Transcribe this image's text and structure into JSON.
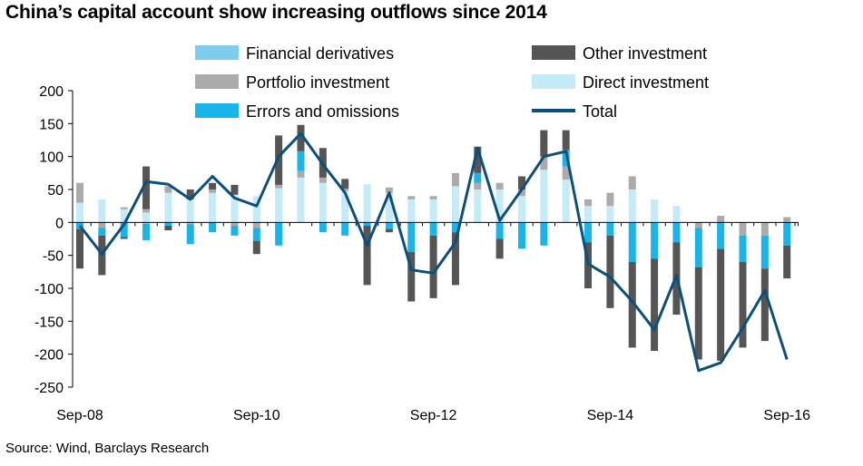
{
  "chart_data": {
    "type": "bar",
    "stacked": true,
    "title": "China’s capital account show increasing outflows since 2014",
    "source": "Source: Wind, Barclays Research",
    "ylim": [
      -250,
      200
    ],
    "yticks": [
      200,
      150,
      100,
      50,
      0,
      -50,
      -100,
      -150,
      -200,
      -250
    ],
    "x_tick_labels": [
      "Sep-08",
      "Sep-10",
      "Sep-12",
      "Sep-14",
      "Sep-16"
    ],
    "x_tick_index": [
      0,
      8,
      16,
      24,
      32
    ],
    "grid": false,
    "colors": {
      "financial_derivatives": "#7ecdf0",
      "other_investment": "#555555",
      "portfolio_investment": "#ababab",
      "direct_investment": "#c5eaf8",
      "errors_and_omissions": "#18b5ea",
      "total": "#0b4f7c"
    },
    "legend": [
      {
        "key": "financial_derivatives",
        "name": "Financial derivatives",
        "kind": "bar"
      },
      {
        "key": "other_investment",
        "name": "Other investment",
        "kind": "bar"
      },
      {
        "key": "portfolio_investment",
        "name": "Portfolio investment",
        "kind": "bar"
      },
      {
        "key": "direct_investment",
        "name": "Direct investment",
        "kind": "bar"
      },
      {
        "key": "errors_and_omissions",
        "name": "Errors and omissions",
        "kind": "bar"
      },
      {
        "key": "total",
        "name": "Total",
        "kind": "line"
      }
    ],
    "stack_order": [
      "direct_investment",
      "portfolio_investment",
      "financial_derivatives",
      "errors_and_omissions",
      "other_investment"
    ],
    "series": [
      {
        "key": "direct_investment",
        "name": "Direct investment",
        "values": [
          30,
          35,
          20,
          15,
          45,
          35,
          45,
          42,
          40,
          52,
          68,
          60,
          48,
          58,
          45,
          35,
          35,
          55,
          50,
          50,
          40,
          80,
          65,
          25,
          25,
          50,
          35,
          25,
          0,
          0,
          0,
          0,
          0
        ]
      },
      {
        "key": "portfolio_investment",
        "name": "Portfolio investment",
        "values": [
          30,
          -8,
          3,
          5,
          10,
          -3,
          5,
          -5,
          -8,
          5,
          10,
          8,
          3,
          0,
          8,
          5,
          5,
          20,
          10,
          10,
          10,
          20,
          20,
          10,
          20,
          20,
          0,
          0,
          -8,
          10,
          -20,
          -20,
          8
        ]
      },
      {
        "key": "financial_derivatives",
        "name": "Financial derivatives",
        "values": [
          0,
          0,
          0,
          -2,
          0,
          0,
          0,
          0,
          0,
          0,
          0,
          0,
          0,
          0,
          0,
          0,
          0,
          0,
          0,
          0,
          0,
          0,
          0,
          0,
          0,
          0,
          0,
          0,
          0,
          0,
          0,
          0,
          0
        ]
      },
      {
        "key": "errors_and_omissions",
        "name": "Errors and omissions",
        "values": [
          -10,
          -12,
          -22,
          -25,
          -5,
          -30,
          -15,
          -15,
          -20,
          -35,
          30,
          -15,
          -20,
          -5,
          -10,
          -45,
          -20,
          -15,
          15,
          -25,
          -40,
          -35,
          25,
          -30,
          -20,
          -60,
          -55,
          -30,
          -60,
          -40,
          -40,
          -50,
          -35
        ]
      },
      {
        "key": "other_investment",
        "name": "Other investment",
        "values": [
          -60,
          -60,
          -3,
          65,
          -7,
          15,
          10,
          15,
          -20,
          75,
          40,
          45,
          15,
          -90,
          -5,
          -75,
          -95,
          -80,
          40,
          -30,
          20,
          40,
          30,
          -70,
          -110,
          -130,
          -140,
          -110,
          -140,
          -170,
          -130,
          -110,
          -50
        ]
      },
      {
        "key": "total",
        "name": "Total",
        "kind": "line",
        "values": [
          -5,
          -48,
          -3,
          62,
          58,
          35,
          70,
          37,
          25,
          100,
          135,
          88,
          45,
          -35,
          45,
          -72,
          -77,
          -30,
          113,
          3,
          50,
          100,
          108,
          -63,
          -83,
          -120,
          -163,
          -80,
          -225,
          -213,
          -160,
          -103,
          -208
        ]
      }
    ]
  }
}
